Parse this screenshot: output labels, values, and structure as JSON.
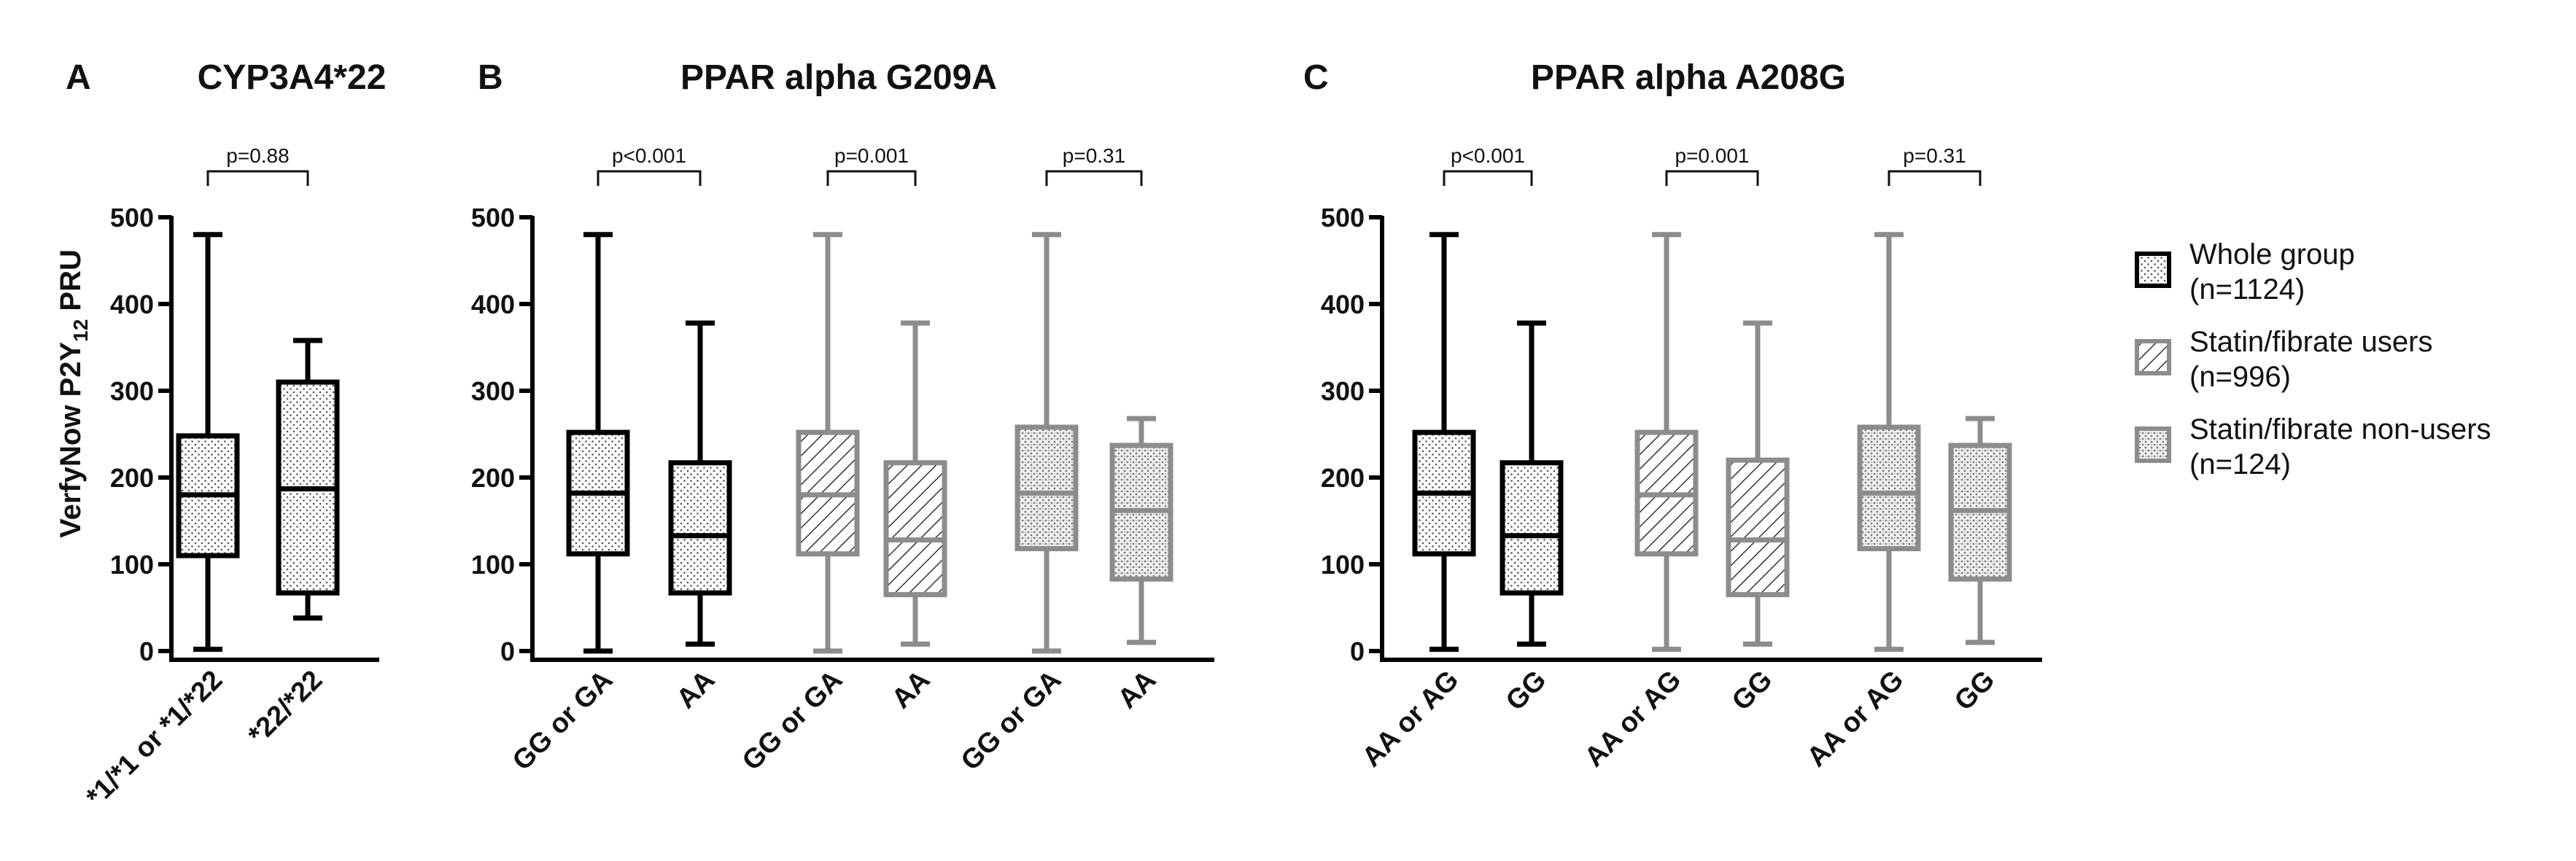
{
  "colors": {
    "whole": "#000000",
    "group_gray": "#8c8c8c",
    "axis": "#000000"
  },
  "y_axis": {
    "label_main": "VerfyNow P2Y",
    "label_sub": "12",
    "label_tail": " PRU",
    "ticks": [
      0,
      100,
      200,
      300,
      400,
      500
    ],
    "ylim": [
      0,
      500
    ]
  },
  "legend": {
    "items": [
      {
        "key": "whole",
        "line1": "Whole group",
        "line2": "(n=1124)"
      },
      {
        "key": "users",
        "line1": "Statin/fibrate users",
        "line2": "(n=996)"
      },
      {
        "key": "nonusers",
        "line1": "Statin/fibrate non-users",
        "line2": "(n=124)"
      }
    ]
  },
  "chart_data": [
    {
      "type": "boxplot",
      "panel": "A",
      "title": "CYP3A4*22",
      "ylabel": "VerfyNow P2Y12 PRU",
      "ylim": [
        0,
        500
      ],
      "groups": [
        {
          "group": "whole",
          "p_value": "p=0.88",
          "boxes": [
            {
              "category": "*1/*1 or *1/*22",
              "min": 2,
              "q1": 110,
              "median": 180,
              "q3": 248,
              "max": 480
            },
            {
              "category": "*22/*22",
              "min": 38,
              "q1": 67,
              "median": 187,
              "q3": 310,
              "max": 358
            }
          ]
        }
      ]
    },
    {
      "type": "boxplot",
      "panel": "B",
      "title": "PPAR alpha G209A",
      "ylabel": "VerfyNow P2Y12 PRU",
      "ylim": [
        0,
        500
      ],
      "groups": [
        {
          "group": "whole",
          "p_value": "p<0.001",
          "boxes": [
            {
              "category": "GG or GA",
              "min": 0,
              "q1": 112,
              "median": 182,
              "q3": 252,
              "max": 480
            },
            {
              "category": "AA",
              "min": 8,
              "q1": 67,
              "median": 133,
              "q3": 217,
              "max": 378
            }
          ]
        },
        {
          "group": "users",
          "p_value": "p=0.001",
          "boxes": [
            {
              "category": "GG or GA",
              "min": 0,
              "q1": 112,
              "median": 180,
              "q3": 252,
              "max": 480
            },
            {
              "category": "AA",
              "min": 8,
              "q1": 65,
              "median": 128,
              "q3": 217,
              "max": 378
            }
          ]
        },
        {
          "group": "nonusers",
          "p_value": "p=0.31",
          "boxes": [
            {
              "category": "GG or GA",
              "min": 0,
              "q1": 118,
              "median": 182,
              "q3": 258,
              "max": 480
            },
            {
              "category": "AA",
              "min": 10,
              "q1": 83,
              "median": 162,
              "q3": 237,
              "max": 268
            }
          ]
        }
      ]
    },
    {
      "type": "boxplot",
      "panel": "C",
      "title": "PPAR alpha A208G",
      "ylabel": "VerfyNow P2Y12 PRU",
      "ylim": [
        0,
        500
      ],
      "groups": [
        {
          "group": "whole",
          "p_value": "p<0.001",
          "boxes": [
            {
              "category": "AA or AG",
              "min": 2,
              "q1": 112,
              "median": 182,
              "q3": 252,
              "max": 480
            },
            {
              "category": "GG",
              "min": 8,
              "q1": 67,
              "median": 133,
              "q3": 217,
              "max": 378
            }
          ]
        },
        {
          "group": "users",
          "p_value": "p=0.001",
          "boxes": [
            {
              "category": "AA or AG",
              "min": 2,
              "q1": 112,
              "median": 180,
              "q3": 252,
              "max": 480
            },
            {
              "category": "GG",
              "min": 8,
              "q1": 65,
              "median": 128,
              "q3": 220,
              "max": 378
            }
          ]
        },
        {
          "group": "nonusers",
          "p_value": "p=0.31",
          "boxes": [
            {
              "category": "AA or AG",
              "min": 2,
              "q1": 118,
              "median": 182,
              "q3": 258,
              "max": 480
            },
            {
              "category": "GG",
              "min": 10,
              "q1": 83,
              "median": 162,
              "q3": 237,
              "max": 268
            }
          ]
        }
      ]
    }
  ]
}
